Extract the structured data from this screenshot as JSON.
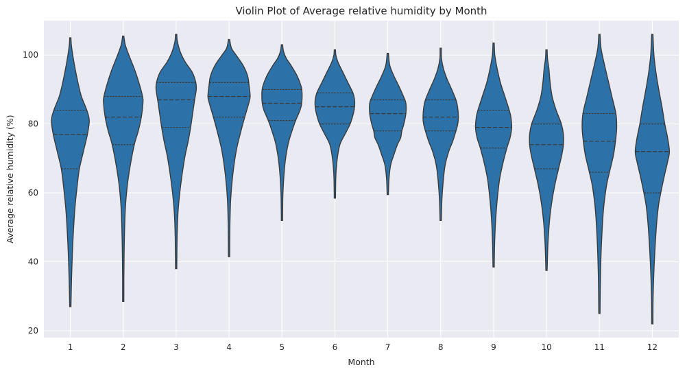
{
  "chart_data": {
    "type": "violin",
    "title": "Violin Plot of Average relative humidity by Month",
    "xlabel": "Month",
    "ylabel": "Average relative humidity (%)",
    "categories": [
      "1",
      "2",
      "3",
      "4",
      "5",
      "6",
      "7",
      "8",
      "9",
      "10",
      "11",
      "12"
    ],
    "yticks": [
      20,
      40,
      60,
      80,
      100
    ],
    "ylim": [
      18,
      110
    ],
    "grid": true,
    "color": "#2c72a8",
    "background": "#eaeaf2",
    "violins": [
      {
        "category": "1",
        "min": 27,
        "max": 105,
        "q1": 67,
        "median": 77,
        "q3": 84,
        "profile": [
          [
            27,
            0.02
          ],
          [
            35,
            0.06
          ],
          [
            45,
            0.12
          ],
          [
            55,
            0.22
          ],
          [
            62,
            0.34
          ],
          [
            67,
            0.45
          ],
          [
            72,
            0.65
          ],
          [
            77,
            0.85
          ],
          [
            81,
            0.94
          ],
          [
            84,
            0.82
          ],
          [
            88,
            0.55
          ],
          [
            92,
            0.38
          ],
          [
            96,
            0.24
          ],
          [
            100,
            0.12
          ],
          [
            103,
            0.05
          ],
          [
            105,
            0
          ]
        ]
      },
      {
        "category": "2",
        "min": 28.5,
        "max": 105.5,
        "q1": 74,
        "median": 82,
        "q3": 88,
        "profile": [
          [
            28.5,
            0.02
          ],
          [
            35,
            0.03
          ],
          [
            45,
            0.05
          ],
          [
            55,
            0.1
          ],
          [
            62,
            0.2
          ],
          [
            68,
            0.35
          ],
          [
            74,
            0.55
          ],
          [
            78,
            0.75
          ],
          [
            82,
            0.9
          ],
          [
            86,
            0.98
          ],
          [
            88,
            0.96
          ],
          [
            92,
            0.78
          ],
          [
            96,
            0.55
          ],
          [
            100,
            0.28
          ],
          [
            103,
            0.1
          ],
          [
            105.5,
            0
          ]
        ]
      },
      {
        "category": "3",
        "min": 38,
        "max": 106,
        "q1": 79,
        "median": 87,
        "q3": 92,
        "profile": [
          [
            38,
            0.02
          ],
          [
            48,
            0.05
          ],
          [
            55,
            0.1
          ],
          [
            62,
            0.22
          ],
          [
            70,
            0.42
          ],
          [
            75,
            0.6
          ],
          [
            79,
            0.72
          ],
          [
            83,
            0.82
          ],
          [
            87,
            0.92
          ],
          [
            90,
            1.0
          ],
          [
            92,
            0.98
          ],
          [
            95,
            0.8
          ],
          [
            98,
            0.45
          ],
          [
            101,
            0.2
          ],
          [
            104,
            0.06
          ],
          [
            106,
            0
          ]
        ]
      },
      {
        "category": "4",
        "min": 41.5,
        "max": 104.5,
        "q1": 82,
        "median": 88,
        "q3": 92,
        "profile": [
          [
            41.5,
            0.02
          ],
          [
            50,
            0.04
          ],
          [
            58,
            0.08
          ],
          [
            65,
            0.18
          ],
          [
            72,
            0.35
          ],
          [
            77,
            0.55
          ],
          [
            82,
            0.78
          ],
          [
            86,
            0.98
          ],
          [
            88,
            1.05
          ],
          [
            91,
            1.0
          ],
          [
            94,
            0.92
          ],
          [
            97,
            0.7
          ],
          [
            100,
            0.35
          ],
          [
            102,
            0.12
          ],
          [
            104.5,
            0
          ]
        ]
      },
      {
        "category": "5",
        "min": 52,
        "max": 103,
        "q1": 81,
        "median": 86,
        "q3": 90,
        "profile": [
          [
            52,
            0.02
          ],
          [
            60,
            0.05
          ],
          [
            68,
            0.14
          ],
          [
            74,
            0.3
          ],
          [
            78,
            0.5
          ],
          [
            81,
            0.68
          ],
          [
            84,
            0.9
          ],
          [
            86,
            0.98
          ],
          [
            89,
            1.0
          ],
          [
            91,
            0.95
          ],
          [
            94,
            0.75
          ],
          [
            97,
            0.45
          ],
          [
            99,
            0.22
          ],
          [
            101,
            0.08
          ],
          [
            103,
            0
          ]
        ]
      },
      {
        "category": "6",
        "min": 58.5,
        "max": 101.5,
        "q1": 80,
        "median": 85,
        "q3": 89,
        "profile": [
          [
            58.5,
            0.02
          ],
          [
            65,
            0.05
          ],
          [
            70,
            0.12
          ],
          [
            74,
            0.25
          ],
          [
            77,
            0.5
          ],
          [
            80,
            0.76
          ],
          [
            83,
            0.92
          ],
          [
            85,
            0.98
          ],
          [
            87,
            0.98
          ],
          [
            89,
            0.9
          ],
          [
            92,
            0.65
          ],
          [
            95,
            0.4
          ],
          [
            98,
            0.15
          ],
          [
            100,
            0.05
          ],
          [
            101.5,
            0
          ]
        ]
      },
      {
        "category": "7",
        "min": 59.5,
        "max": 100.5,
        "q1": 78,
        "median": 83,
        "q3": 87,
        "profile": [
          [
            59.5,
            0.02
          ],
          [
            64,
            0.06
          ],
          [
            68,
            0.14
          ],
          [
            71,
            0.3
          ],
          [
            74,
            0.48
          ],
          [
            76,
            0.64
          ],
          [
            78,
            0.7
          ],
          [
            80,
            0.8
          ],
          [
            83,
            0.9
          ],
          [
            86,
            0.9
          ],
          [
            88,
            0.78
          ],
          [
            91,
            0.55
          ],
          [
            94,
            0.3
          ],
          [
            97,
            0.1
          ],
          [
            100.5,
            0
          ]
        ]
      },
      {
        "category": "8",
        "min": 52,
        "max": 102,
        "q1": 78,
        "median": 82,
        "q3": 87,
        "profile": [
          [
            52,
            0.02
          ],
          [
            58,
            0.06
          ],
          [
            63,
            0.12
          ],
          [
            68,
            0.22
          ],
          [
            72,
            0.4
          ],
          [
            75,
            0.6
          ],
          [
            78,
            0.76
          ],
          [
            80,
            0.85
          ],
          [
            82,
            0.88
          ],
          [
            85,
            0.84
          ],
          [
            87,
            0.76
          ],
          [
            90,
            0.55
          ],
          [
            93,
            0.32
          ],
          [
            96,
            0.14
          ],
          [
            99,
            0.04
          ],
          [
            102,
            0
          ]
        ]
      },
      {
        "category": "9",
        "min": 38.5,
        "max": 103.5,
        "q1": 73,
        "median": 79,
        "q3": 84,
        "profile": [
          [
            38.5,
            0.02
          ],
          [
            45,
            0.05
          ],
          [
            52,
            0.1
          ],
          [
            58,
            0.18
          ],
          [
            64,
            0.3
          ],
          [
            69,
            0.48
          ],
          [
            73,
            0.66
          ],
          [
            76,
            0.82
          ],
          [
            79,
            0.9
          ],
          [
            82,
            0.86
          ],
          [
            84,
            0.78
          ],
          [
            88,
            0.56
          ],
          [
            92,
            0.34
          ],
          [
            96,
            0.18
          ],
          [
            100,
            0.06
          ],
          [
            103.5,
            0
          ]
        ]
      },
      {
        "category": "10",
        "min": 37.5,
        "max": 101.5,
        "q1": 67,
        "median": 74,
        "q3": 80,
        "profile": [
          [
            37.5,
            0.02
          ],
          [
            45,
            0.07
          ],
          [
            52,
            0.15
          ],
          [
            58,
            0.28
          ],
          [
            63,
            0.44
          ],
          [
            67,
            0.6
          ],
          [
            71,
            0.76
          ],
          [
            74,
            0.84
          ],
          [
            77,
            0.84
          ],
          [
            80,
            0.74
          ],
          [
            84,
            0.48
          ],
          [
            88,
            0.28
          ],
          [
            92,
            0.18
          ],
          [
            96,
            0.12
          ],
          [
            99,
            0.05
          ],
          [
            101.5,
            0
          ]
        ]
      },
      {
        "category": "11",
        "min": 25,
        "max": 106,
        "q1": 66,
        "median": 75,
        "q3": 83,
        "profile": [
          [
            25,
            0.02
          ],
          [
            35,
            0.05
          ],
          [
            45,
            0.1
          ],
          [
            55,
            0.2
          ],
          [
            62,
            0.35
          ],
          [
            66,
            0.5
          ],
          [
            71,
            0.7
          ],
          [
            75,
            0.8
          ],
          [
            79,
            0.86
          ],
          [
            83,
            0.82
          ],
          [
            88,
            0.62
          ],
          [
            93,
            0.42
          ],
          [
            98,
            0.22
          ],
          [
            102,
            0.08
          ],
          [
            106,
            0
          ]
        ]
      },
      {
        "category": "12",
        "min": 22,
        "max": 106,
        "q1": 60,
        "median": 72,
        "q3": 80,
        "profile": [
          [
            22,
            0.02
          ],
          [
            30,
            0.04
          ],
          [
            40,
            0.1
          ],
          [
            50,
            0.2
          ],
          [
            56,
            0.3
          ],
          [
            60,
            0.42
          ],
          [
            65,
            0.6
          ],
          [
            69,
            0.76
          ],
          [
            72,
            0.85
          ],
          [
            76,
            0.76
          ],
          [
            80,
            0.62
          ],
          [
            85,
            0.48
          ],
          [
            90,
            0.32
          ],
          [
            95,
            0.18
          ],
          [
            100,
            0.08
          ],
          [
            106,
            0
          ]
        ]
      }
    ]
  }
}
